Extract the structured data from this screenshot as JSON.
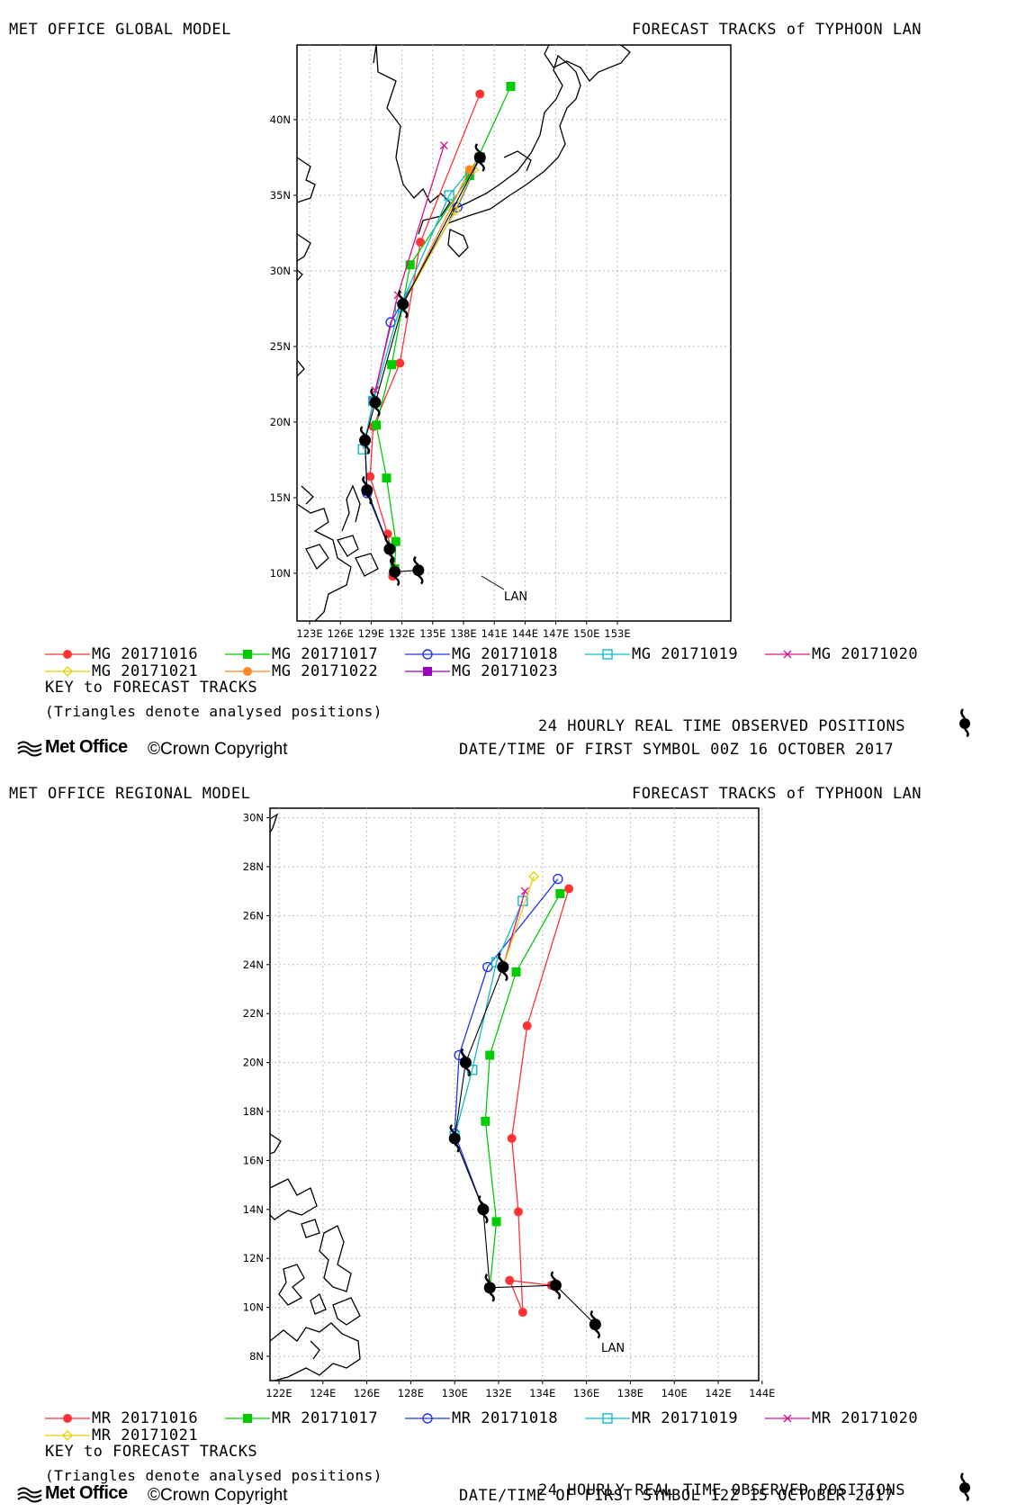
{
  "top": {
    "model_title": "MET OFFICE GLOBAL MODEL",
    "forecast_title": "FORECAST TRACKS of TYPHOON LAN",
    "storm_label": "LAN",
    "lon_ticks": [
      "123E",
      "126E",
      "129E",
      "132E",
      "135E",
      "138E",
      "141E",
      "144E",
      "147E",
      "150E",
      "153E"
    ],
    "lat_ticks": [
      "10N",
      "15N",
      "20N",
      "25N",
      "30N",
      "35N",
      "40N"
    ],
    "legend": [
      {
        "label": "MG 20171016",
        "color": "#ff3333",
        "marker": "dot"
      },
      {
        "label": "MG 20171017",
        "color": "#00cc00",
        "marker": "square"
      },
      {
        "label": "MG 20171018",
        "color": "#2233ee",
        "marker": "circle"
      },
      {
        "label": "MG 20171019",
        "color": "#11bbcc",
        "marker": "opensquare"
      },
      {
        "label": "MG 20171020",
        "color": "#dd1188",
        "marker": "cross"
      },
      {
        "label": "MG 20171021",
        "color": "#e6d000",
        "marker": "diamond"
      },
      {
        "label": "MG 20171022",
        "color": "#ff8822",
        "marker": "dot"
      },
      {
        "label": "MG 20171023",
        "color": "#9900bb",
        "marker": "square"
      }
    ],
    "key_title": "KEY to FORECAST TRACKS",
    "triangles_note": "(Triangles denote analysed positions)",
    "observed_note": "24 HOURLY REAL TIME OBSERVED POSITIONS",
    "first_symbol": "DATE/TIME OF FIRST SYMBOL 00Z 16 OCTOBER 2017",
    "logo": "Met Office",
    "copyright": "©Crown Copyright"
  },
  "bottom": {
    "model_title": "MET OFFICE REGIONAL MODEL",
    "forecast_title": "FORECAST TRACKS of TYPHOON LAN",
    "storm_label": "LAN",
    "lon_ticks": [
      "122E",
      "124E",
      "126E",
      "128E",
      "130E",
      "132E",
      "134E",
      "136E",
      "138E",
      "140E",
      "142E",
      "144E"
    ],
    "lat_ticks": [
      "8N",
      "10N",
      "12N",
      "14N",
      "16N",
      "18N",
      "20N",
      "22N",
      "24N",
      "26N",
      "28N",
      "30N"
    ],
    "legend": [
      {
        "label": "MR 20171016",
        "color": "#ff3333",
        "marker": "dot"
      },
      {
        "label": "MR 20171017",
        "color": "#00cc00",
        "marker": "square"
      },
      {
        "label": "MR 20171018",
        "color": "#2233ee",
        "marker": "circle"
      },
      {
        "label": "MR 20171019",
        "color": "#11bbcc",
        "marker": "opensquare"
      },
      {
        "label": "MR 20171020",
        "color": "#dd1188",
        "marker": "cross"
      },
      {
        "label": "MR 20171021",
        "color": "#e6d000",
        "marker": "diamond"
      }
    ],
    "key_title": "KEY to FORECAST TRACKS",
    "triangles_note": "(Triangles denote analysed positions)",
    "observed_note": "24 HOURLY REAL TIME OBSERVED POSITIONS",
    "first_symbol": "DATE/TIME OF FIRST SYMBOL 12Z 15 OCTOBER 2017",
    "logo": "Met Office",
    "copyright": "©Crown Copyright"
  },
  "tracks_top": {
    "observed": [
      [
        133.6,
        10.2
      ],
      [
        131.3,
        10.1
      ],
      [
        130.8,
        11.6
      ],
      [
        128.6,
        15.5
      ],
      [
        128.4,
        18.8
      ],
      [
        129.4,
        21.3
      ],
      [
        132.1,
        27.8
      ],
      [
        139.6,
        37.5
      ]
    ],
    "MG 20171016": [
      [
        131.1,
        9.8
      ],
      [
        131.3,
        10.3
      ],
      [
        130.6,
        12.6
      ],
      [
        128.9,
        16.4
      ],
      [
        129.2,
        19.7
      ],
      [
        131.8,
        23.9
      ],
      [
        133.8,
        31.9
      ],
      [
        139.6,
        41.7
      ]
    ],
    "MG 20171017": [
      [
        131.3,
        10.3
      ],
      [
        131.4,
        12.1
      ],
      [
        130.5,
        16.3
      ],
      [
        129.5,
        19.8
      ],
      [
        131.0,
        23.8
      ],
      [
        132.8,
        30.4
      ],
      [
        138.6,
        36.3
      ],
      [
        142.6,
        42.2
      ]
    ],
    "MG 20171018": [
      [
        130.8,
        11.6
      ],
      [
        128.6,
        15.3
      ],
      [
        128.4,
        18.7
      ],
      [
        129.2,
        21.4
      ],
      [
        130.9,
        26.6
      ],
      [
        137.4,
        34.2
      ],
      [
        139.6,
        37.5
      ]
    ],
    "MG 20171019": [
      [
        128.2,
        18.2
      ],
      [
        129.2,
        21.4
      ],
      [
        131.8,
        27.6
      ],
      [
        136.6,
        35.0
      ],
      [
        139.6,
        37.5
      ]
    ],
    "MG 20171020": [
      [
        129.4,
        22.1
      ],
      [
        131.6,
        28.4
      ],
      [
        136.1,
        38.3
      ]
    ],
    "MG 20171021": [
      [
        132.1,
        27.8
      ],
      [
        137.2,
        34.0
      ],
      [
        139.0,
        36.7
      ]
    ],
    "MG 20171022": [
      [
        132.1,
        27.8
      ],
      [
        138.6,
        36.7
      ],
      [
        139.6,
        37.5
      ]
    ],
    "MG 20171023": [
      [
        139.6,
        37.5
      ]
    ]
  },
  "tracks_bottom": {
    "observed": [
      [
        136.4,
        9.3
      ],
      [
        134.6,
        10.9
      ],
      [
        131.6,
        10.8
      ],
      [
        131.3,
        14.0
      ],
      [
        130.0,
        16.9
      ],
      [
        130.5,
        20.0
      ],
      [
        132.2,
        23.9
      ]
    ],
    "MR 20171016": [
      [
        134.4,
        10.9
      ],
      [
        132.5,
        11.1
      ],
      [
        133.1,
        9.8
      ],
      [
        132.9,
        13.9
      ],
      [
        132.6,
        16.9
      ],
      [
        133.3,
        21.5
      ],
      [
        135.2,
        27.1
      ]
    ],
    "MR 20171017": [
      [
        131.6,
        10.8
      ],
      [
        131.9,
        13.5
      ],
      [
        131.4,
        17.6
      ],
      [
        131.6,
        20.3
      ],
      [
        132.8,
        23.7
      ],
      [
        134.8,
        26.9
      ]
    ],
    "MR 20171018": [
      [
        131.3,
        14.0
      ],
      [
        130.0,
        17.1
      ],
      [
        130.2,
        20.3
      ],
      [
        131.5,
        23.9
      ],
      [
        134.7,
        27.5
      ]
    ],
    "MR 20171019": [
      [
        130.0,
        17.0
      ],
      [
        130.8,
        19.7
      ],
      [
        131.9,
        24.1
      ],
      [
        133.1,
        26.6
      ]
    ],
    "MR 20171020": [
      [
        132.2,
        23.9
      ],
      [
        133.2,
        27.0
      ]
    ],
    "MR 20171021": [
      [
        132.2,
        23.9
      ],
      [
        133.6,
        27.6
      ]
    ]
  }
}
